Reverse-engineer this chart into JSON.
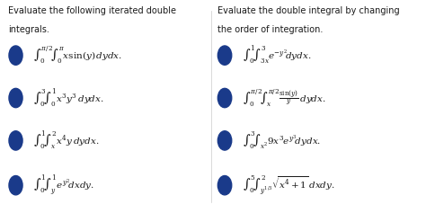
{
  "bg_color": "#ffffff",
  "left_title_line1": "Evaluate the following iterated double",
  "left_title_line2": "integrals.",
  "right_title_line1": "Evaluate the double integral by changing",
  "right_title_line2": "the order of integration.",
  "left_items": [
    "$\\int_0^{\\pi/2}\\!\\int_0^{\\pi} x\\sin(y)\\,dydx.$",
    "$\\int_0^{3}\\!\\int_0^{1} x^3y^3\\,dydx.$",
    "$\\int_0^{1}\\!\\int_x^{2} x^4y\\,dydx.$",
    "$\\int_0^{1}\\!\\int_y^{1} e^{y^2}\\!dxdy.$"
  ],
  "right_items": [
    "$\\int_0^{1}\\!\\int_{3x}^{3} e^{-y^2}\\!dydx.$",
    "$\\int_0^{\\pi/2}\\!\\int_x^{\\pi/2} \\frac{\\sin(y)}{y}\\,dydx.$",
    "$\\int_0^{3}\\!\\int_{x^2}^{} 9x^3e^{y^3}\\!dydx.$",
    "$\\int_0^{5}\\!\\int_{y^{1/3}}^{2} \\sqrt{x^4+1}\\,dxdy.$"
  ],
  "bullet_color": "#1a3a8a",
  "text_color": "#1a1a1a",
  "title_fontsize": 7.0,
  "item_fontsize": 7.5
}
